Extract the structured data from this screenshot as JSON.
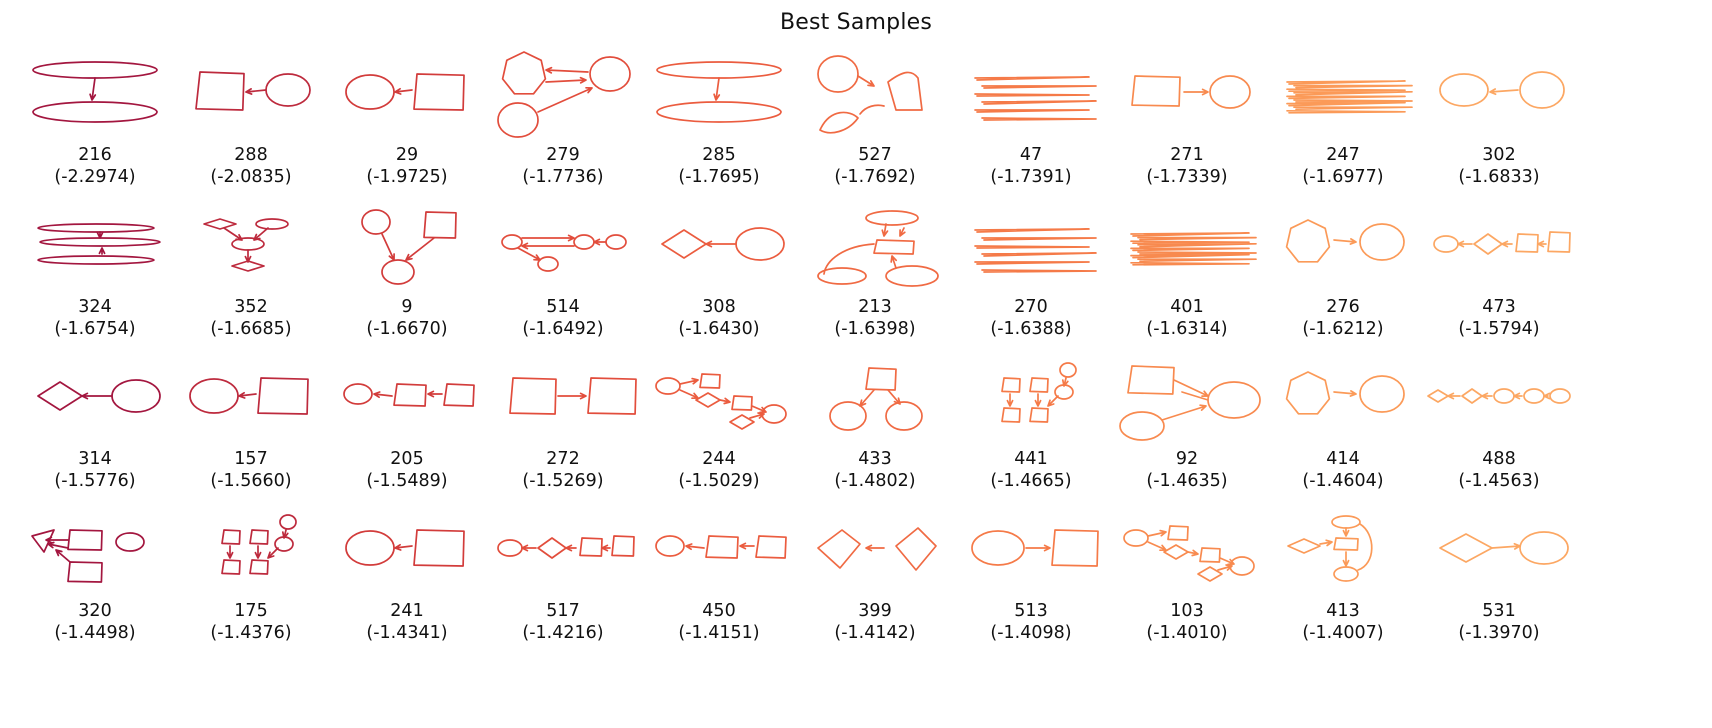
{
  "title": "Best Samples",
  "colors": [
    "#a3163f",
    "#bd2a3d",
    "#d23c3b",
    "#e24d3c",
    "#eb5c3f",
    "#f06a43",
    "#f57a48",
    "#f88a4f",
    "#fb9a58",
    "#fca763"
  ],
  "samples": [
    {
      "id": "216",
      "score": "(-2.2974)",
      "shape": "two-ellipses-stacked"
    },
    {
      "id": "288",
      "score": "(-2.0835)",
      "shape": "square-left-circle"
    },
    {
      "id": "29",
      "score": "(-1.9725)",
      "shape": "circle-left-square"
    },
    {
      "id": "279",
      "score": "(-1.7736)",
      "shape": "hexagon-circles-arrows"
    },
    {
      "id": "285",
      "score": "(-1.7695)",
      "shape": "two-ellipses-stacked"
    },
    {
      "id": "527",
      "score": "(-1.7692)",
      "shape": "loose-loops"
    },
    {
      "id": "47",
      "score": "(-1.7391)",
      "shape": "stacked-lines"
    },
    {
      "id": "271",
      "score": "(-1.7339)",
      "shape": "square-arrow-circle"
    },
    {
      "id": "247",
      "score": "(-1.6977)",
      "shape": "scribble"
    },
    {
      "id": "302",
      "score": "(-1.6833)",
      "shape": "circle-left-circle"
    },
    {
      "id": "324",
      "score": "(-1.6754)",
      "shape": "stacked-ellipses"
    },
    {
      "id": "352",
      "score": "(-1.6685)",
      "shape": "small-tree"
    },
    {
      "id": "9",
      "score": "(-1.6670)",
      "shape": "two-to-one"
    },
    {
      "id": "514",
      "score": "(-1.6492)",
      "shape": "circle-chain"
    },
    {
      "id": "308",
      "score": "(-1.6430)",
      "shape": "diamond-left-circle"
    },
    {
      "id": "213",
      "score": "(-1.6398)",
      "shape": "flow-cycle"
    },
    {
      "id": "270",
      "score": "(-1.6388)",
      "shape": "stacked-lines"
    },
    {
      "id": "401",
      "score": "(-1.6314)",
      "shape": "scribble"
    },
    {
      "id": "276",
      "score": "(-1.6212)",
      "shape": "circle-arrow-circle"
    },
    {
      "id": "473",
      "score": "(-1.5794)",
      "shape": "four-node-chain"
    },
    {
      "id": "314",
      "score": "(-1.5776)",
      "shape": "diamond-left-circle"
    },
    {
      "id": "157",
      "score": "(-1.5660)",
      "shape": "circle-left-square"
    },
    {
      "id": "205",
      "score": "(-1.5489)",
      "shape": "three-node-chain"
    },
    {
      "id": "272",
      "score": "(-1.5269)",
      "shape": "square-arrow-square"
    },
    {
      "id": "244",
      "score": "(-1.5029)",
      "shape": "zigzag-network"
    },
    {
      "id": "433",
      "score": "(-1.4802)",
      "shape": "one-to-two"
    },
    {
      "id": "441",
      "score": "(-1.4665)",
      "shape": "small-grid"
    },
    {
      "id": "92",
      "score": "(-1.4635)",
      "shape": "two-to-circle"
    },
    {
      "id": "414",
      "score": "(-1.4604)",
      "shape": "circle-arrow-circle"
    },
    {
      "id": "488",
      "score": "(-1.4563)",
      "shape": "five-node-chain"
    },
    {
      "id": "320",
      "score": "(-1.4498)",
      "shape": "messy-cluster"
    },
    {
      "id": "175",
      "score": "(-1.4376)",
      "shape": "small-grid"
    },
    {
      "id": "241",
      "score": "(-1.4341)",
      "shape": "circle-left-square"
    },
    {
      "id": "517",
      "score": "(-1.4216)",
      "shape": "four-node-chain"
    },
    {
      "id": "450",
      "score": "(-1.4151)",
      "shape": "three-node-chain"
    },
    {
      "id": "399",
      "score": "(-1.4142)",
      "shape": "diamond-left-diamond"
    },
    {
      "id": "513",
      "score": "(-1.4098)",
      "shape": "circle-arrow-square"
    },
    {
      "id": "103",
      "score": "(-1.4010)",
      "shape": "zigzag-network"
    },
    {
      "id": "413",
      "score": "(-1.4007)",
      "shape": "diamond-tree"
    },
    {
      "id": "531",
      "score": "(-1.3970)",
      "shape": "diamond-arrow-circle"
    }
  ]
}
